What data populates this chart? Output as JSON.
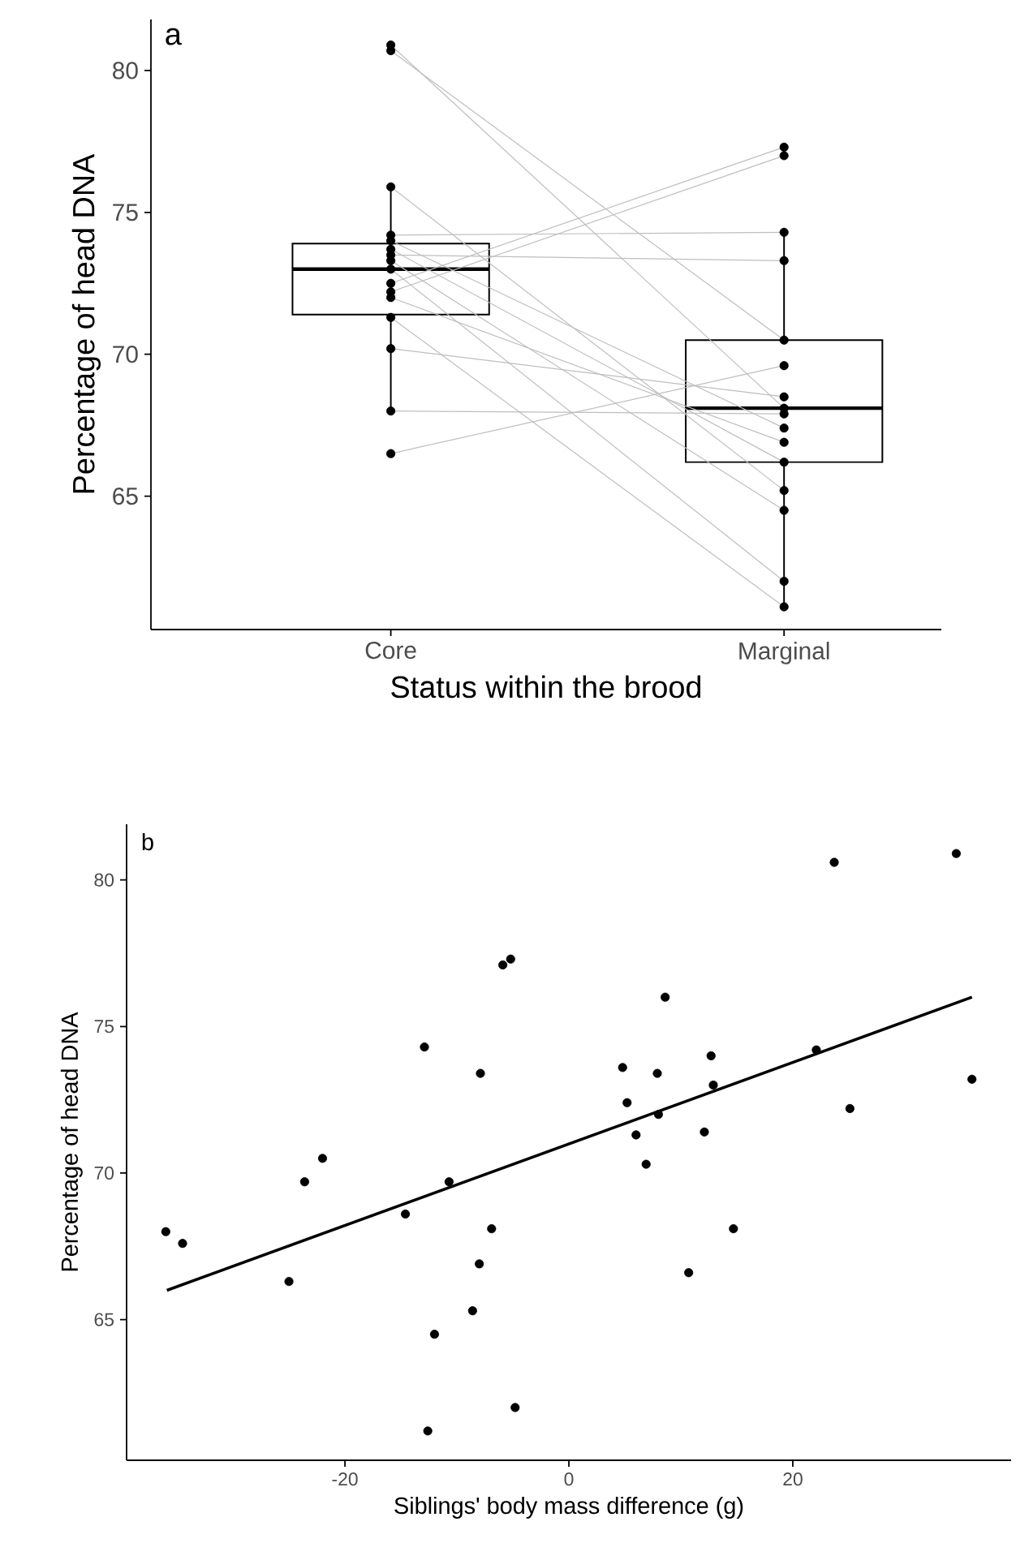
{
  "chart_data": [
    {
      "type": "box",
      "annotations": [
        "a"
      ],
      "xlabel": "Status within the brood",
      "ylabel": "Percentage of head DNA",
      "categories": [
        "Core",
        "Marginal"
      ],
      "boxes": [
        {
          "low": 68.0,
          "q1": 71.4,
          "median": 73.0,
          "q3": 73.9,
          "high": 75.9
        },
        {
          "low": 61.1,
          "q1": 66.2,
          "median": 68.1,
          "q3": 70.5,
          "high": 74.3
        }
      ],
      "ylim": [
        60.3,
        81.8
      ],
      "yticks": [
        65,
        70,
        75,
        80
      ],
      "grid": false,
      "series": [
        {
          "type": "line",
          "color": "#bebebe",
          "values": [
            80.9,
            68.1
          ]
        },
        {
          "type": "line",
          "color": "#bebebe",
          "values": [
            80.7,
            70.5
          ]
        },
        {
          "type": "line",
          "color": "#bebebe",
          "values": [
            75.9,
            65.2
          ]
        },
        {
          "type": "line",
          "color": "#bebebe",
          "values": [
            74.2,
            74.3
          ]
        },
        {
          "type": "line",
          "color": "#bebebe",
          "values": [
            74.0,
            67.4
          ]
        },
        {
          "type": "line",
          "color": "#bebebe",
          "values": [
            73.7,
            66.2
          ]
        },
        {
          "type": "line",
          "color": "#bebebe",
          "values": [
            73.5,
            73.3
          ]
        },
        {
          "type": "line",
          "color": "#bebebe",
          "values": [
            73.3,
            64.5
          ]
        },
        {
          "type": "line",
          "color": "#bebebe",
          "values": [
            73.0,
            62.0
          ]
        },
        {
          "type": "line",
          "color": "#bebebe",
          "values": [
            72.5,
            77.3
          ]
        },
        {
          "type": "line",
          "color": "#bebebe",
          "values": [
            72.2,
            77.0
          ]
        },
        {
          "type": "line",
          "color": "#bebebe",
          "values": [
            72.0,
            66.9
          ]
        },
        {
          "type": "line",
          "color": "#bebebe",
          "values": [
            71.3,
            61.1
          ]
        },
        {
          "type": "line",
          "color": "#bebebe",
          "values": [
            70.2,
            68.5
          ]
        },
        {
          "type": "line",
          "color": "#bebebe",
          "values": [
            68.0,
            67.9
          ]
        },
        {
          "type": "line",
          "color": "#bebebe",
          "values": [
            66.5,
            69.6
          ]
        },
        {
          "type": "scatter",
          "color": "#000000",
          "x": [
            "Core",
            "Core",
            "Core",
            "Core",
            "Core",
            "Core",
            "Core",
            "Core",
            "Core",
            "Core",
            "Core",
            "Core",
            "Core",
            "Core",
            "Core",
            "Core",
            "Marginal",
            "Marginal",
            "Marginal",
            "Marginal",
            "Marginal",
            "Marginal",
            "Marginal",
            "Marginal",
            "Marginal",
            "Marginal",
            "Marginal",
            "Marginal",
            "Marginal",
            "Marginal",
            "Marginal",
            "Marginal"
          ],
          "values": [
            80.9,
            80.7,
            75.9,
            74.2,
            74.0,
            73.7,
            73.5,
            73.3,
            73.0,
            72.5,
            72.2,
            72.0,
            71.3,
            70.2,
            68.0,
            66.5,
            68.1,
            70.5,
            65.2,
            74.3,
            67.4,
            66.2,
            73.3,
            64.5,
            62.0,
            77.3,
            77.0,
            66.9,
            61.1,
            68.5,
            67.9,
            69.6
          ]
        }
      ]
    },
    {
      "type": "scatter",
      "annotations": [
        "b"
      ],
      "xlabel": "Siblings' body mass difference (g)",
      "ylabel": "Percentage of head DNA",
      "xlim": [
        -39.5,
        39.5
      ],
      "xticks": [
        -20,
        0,
        20
      ],
      "ylim": [
        60.2,
        81.9
      ],
      "yticks": [
        65,
        70,
        75,
        80
      ],
      "grid": false,
      "series": [
        {
          "type": "scatter",
          "color": "#000000",
          "x": [
            -36.0,
            -34.5,
            -25.0,
            -23.6,
            -22.0,
            -14.6,
            -12.9,
            -12.6,
            -12.0,
            -10.7,
            -8.6,
            -8.0,
            -7.9,
            -6.9,
            -5.9,
            -5.2,
            -4.8,
            4.8,
            5.2,
            6.0,
            6.9,
            7.9,
            8.0,
            8.6,
            10.7,
            12.1,
            12.7,
            12.9,
            14.7,
            22.1,
            23.7,
            25.1,
            34.6,
            36.0
          ],
          "values": [
            68.0,
            67.6,
            66.3,
            69.7,
            70.5,
            68.6,
            74.3,
            61.2,
            64.5,
            69.7,
            65.3,
            66.9,
            73.4,
            68.1,
            77.1,
            77.3,
            62.0,
            73.6,
            72.4,
            71.3,
            70.3,
            73.4,
            72.0,
            76.0,
            66.6,
            71.4,
            74.0,
            73.0,
            68.1,
            74.2,
            80.6,
            72.2,
            80.9,
            73.2
          ]
        },
        {
          "type": "line",
          "color": "#000000",
          "x": [
            -35.9,
            36.0
          ],
          "values": [
            66.0,
            76.0
          ]
        }
      ]
    }
  ]
}
